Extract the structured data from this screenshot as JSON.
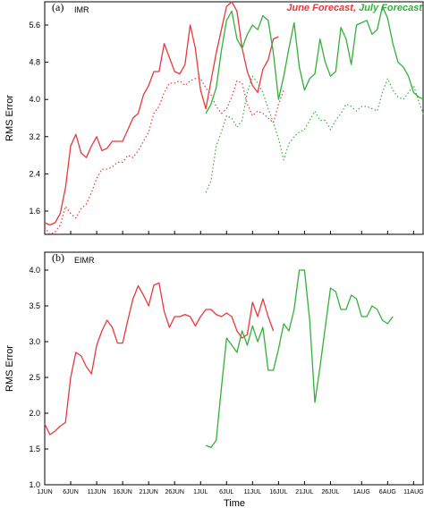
{
  "chart_data": [
    {
      "type": "line",
      "panel_label": "(a)",
      "panel_title": "IMR",
      "legend": [
        {
          "label": "June Forecast,",
          "color": "#e8383d"
        },
        {
          "label": "July Forecast",
          "color": "#33b03a"
        }
      ],
      "ylabel": "RMS Error",
      "xlabel": "",
      "ylim": [
        1.1,
        6.1
      ],
      "yticks": [
        1.6,
        2.4,
        3.2,
        4.0,
        4.8,
        5.6
      ],
      "ytick_labels": [
        "1.6",
        "2.4",
        "3.2",
        "4.0",
        "4.8",
        "5.6"
      ],
      "xlim": [
        0,
        73
      ],
      "series": [
        {
          "name": "June Forecast",
          "style": "solid",
          "color": "#e8383d",
          "x_start": 0,
          "values": [
            1.35,
            1.3,
            1.35,
            1.55,
            2.1,
            3.0,
            3.25,
            2.85,
            2.75,
            3.0,
            3.2,
            2.9,
            2.95,
            3.1,
            3.1,
            3.1,
            3.35,
            3.6,
            3.7,
            4.1,
            4.3,
            4.6,
            4.6,
            5.2,
            4.9,
            4.6,
            4.55,
            4.75,
            5.6,
            5.1,
            4.2,
            3.8,
            4.4,
            5.0,
            5.5,
            6.0,
            6.1,
            5.9,
            5.1,
            4.6,
            4.3,
            4.15,
            4.65,
            4.85,
            5.3,
            5.35
          ]
        },
        {
          "name": "June Forecast (dotted)",
          "style": "dotted",
          "color": "#e8383d",
          "x_start": 0,
          "values": [
            1.25,
            1.1,
            1.15,
            1.3,
            1.7,
            1.55,
            1.45,
            1.65,
            1.75,
            2.0,
            2.3,
            2.5,
            2.5,
            2.55,
            2.65,
            2.65,
            2.8,
            2.75,
            2.9,
            3.1,
            3.3,
            3.7,
            3.85,
            4.15,
            4.35,
            4.35,
            4.4,
            4.3,
            4.4,
            4.45,
            4.45,
            4.25,
            4.1,
            3.85,
            3.7,
            3.8,
            4.05,
            4.4,
            4.35,
            3.9,
            3.65,
            3.75,
            3.7,
            3.6,
            3.5,
            3.9,
            4.2
          ]
        },
        {
          "name": "July Forecast",
          "style": "solid",
          "color": "#33b03a",
          "x_start": 31,
          "values": [
            3.7,
            3.9,
            4.25,
            5.05,
            5.7,
            5.9,
            5.3,
            5.1,
            5.4,
            5.6,
            5.5,
            5.8,
            5.7,
            5.0,
            4.0,
            4.5,
            5.1,
            5.65,
            4.7,
            4.2,
            4.45,
            4.55,
            5.3,
            4.8,
            4.5,
            4.6,
            5.55,
            5.3,
            4.75,
            5.6,
            5.65,
            5.7,
            5.4,
            5.5,
            6.0,
            5.75,
            5.2,
            4.8,
            4.7,
            4.5,
            4.15,
            4.05,
            4.0,
            4.05
          ]
        },
        {
          "name": "July Forecast (dotted)",
          "style": "dotted",
          "color": "#33b03a",
          "x_start": 31,
          "values": [
            2.0,
            2.25,
            3.0,
            3.3,
            3.65,
            3.6,
            3.4,
            3.55,
            4.15,
            4.5,
            4.35,
            4.15,
            3.8,
            3.5,
            3.15,
            2.7,
            3.05,
            3.2,
            3.3,
            3.35,
            3.55,
            3.75,
            3.55,
            3.55,
            3.35,
            3.55,
            3.7,
            3.9,
            3.85,
            3.75,
            3.85,
            3.85,
            3.8,
            3.75,
            4.15,
            4.45,
            4.2,
            4.05,
            4.0,
            4.15,
            4.3,
            3.95,
            3.65,
            3.45
          ]
        }
      ]
    },
    {
      "type": "line",
      "panel_label": "(b)",
      "panel_title": "EIMR",
      "ylabel": "RMS Error",
      "xlabel": "Time",
      "ylim": [
        1.0,
        4.25
      ],
      "yticks": [
        1.0,
        1.5,
        2.0,
        2.5,
        3.0,
        3.5,
        4.0
      ],
      "ytick_labels": [
        "1.0",
        "1.5",
        "2.0",
        "2.5",
        "3.0",
        "3.5",
        "4.0"
      ],
      "xlim": [
        0,
        73
      ],
      "xticks": [
        0,
        5,
        10,
        15,
        20,
        25,
        30,
        35,
        40,
        45,
        50,
        55,
        61,
        66,
        71
      ],
      "xtick_labels": [
        "1JUN",
        "6JUN",
        "11JUN",
        "16JUN",
        "21JUN",
        "26JUN",
        "1JUL",
        "6JUL",
        "11JUL",
        "16JUL",
        "21JUL",
        "26JUL",
        "1AUG",
        "6AUG",
        "11AUG"
      ],
      "series": [
        {
          "name": "June Forecast",
          "style": "solid",
          "color": "#e8383d",
          "x_start": 0,
          "values": [
            1.85,
            1.7,
            1.75,
            1.82,
            1.87,
            2.5,
            2.85,
            2.8,
            2.65,
            2.55,
            2.95,
            3.15,
            3.3,
            3.2,
            2.98,
            2.98,
            3.3,
            3.6,
            3.78,
            3.65,
            3.5,
            3.79,
            3.82,
            3.42,
            3.2,
            3.35,
            3.35,
            3.38,
            3.35,
            3.22,
            3.35,
            3.45,
            3.45,
            3.38,
            3.35,
            3.4,
            3.35,
            3.15,
            3.05,
            3.1,
            3.55,
            3.35,
            3.6,
            3.35,
            3.15
          ]
        },
        {
          "name": "July Forecast",
          "style": "solid",
          "color": "#33b03a",
          "x_start": 31,
          "values": [
            1.55,
            1.52,
            1.62,
            2.35,
            3.05,
            2.95,
            2.85,
            3.15,
            2.95,
            3.22,
            3.0,
            3.2,
            2.6,
            2.6,
            2.9,
            3.25,
            3.15,
            3.45,
            4.0,
            4.0,
            3.3,
            2.15,
            2.65,
            3.2,
            3.75,
            3.7,
            3.45,
            3.45,
            3.65,
            3.6,
            3.35,
            3.35,
            3.5,
            3.45,
            3.3,
            3.25,
            3.35
          ]
        }
      ]
    }
  ]
}
